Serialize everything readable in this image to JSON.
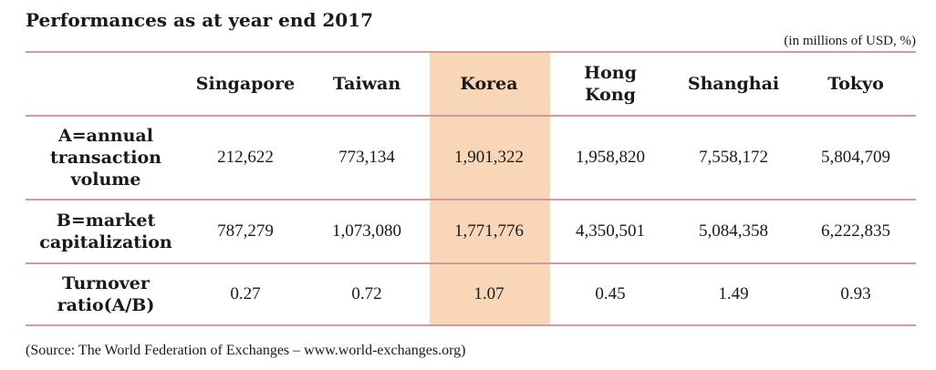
{
  "title": "Performances as at year end 2017",
  "unit_note": "(in millions of USD, %)",
  "source": "(Source: The World Federation of Exchanges – www.world-exchanges.org)",
  "colors": {
    "highlight": "#f8d6b7",
    "rule": "#d49a9a"
  },
  "chart_data": {
    "type": "table",
    "title": "Performances as at year end 2017",
    "columns": [
      "",
      "Singapore",
      "Taiwan",
      "Korea",
      "Hong Kong",
      "Shanghai",
      "Tokyo"
    ],
    "highlighted_column": "Korea",
    "rows": [
      {
        "label": "A=annual transaction volume",
        "values": [
          "212,622",
          "773,134",
          "1,901,322",
          "1,958,820",
          "7,558,172",
          "5,804,709"
        ]
      },
      {
        "label": "B=market capitalization",
        "values": [
          "787,279",
          "1,073,080",
          "1,771,776",
          "4,350,501",
          "5,084,358",
          "6,222,835"
        ]
      },
      {
        "label": "Turnover ratio(A/B)",
        "values": [
          "0.27",
          "0.72",
          "1.07",
          "0.45",
          "1.49",
          "0.93"
        ]
      }
    ]
  }
}
